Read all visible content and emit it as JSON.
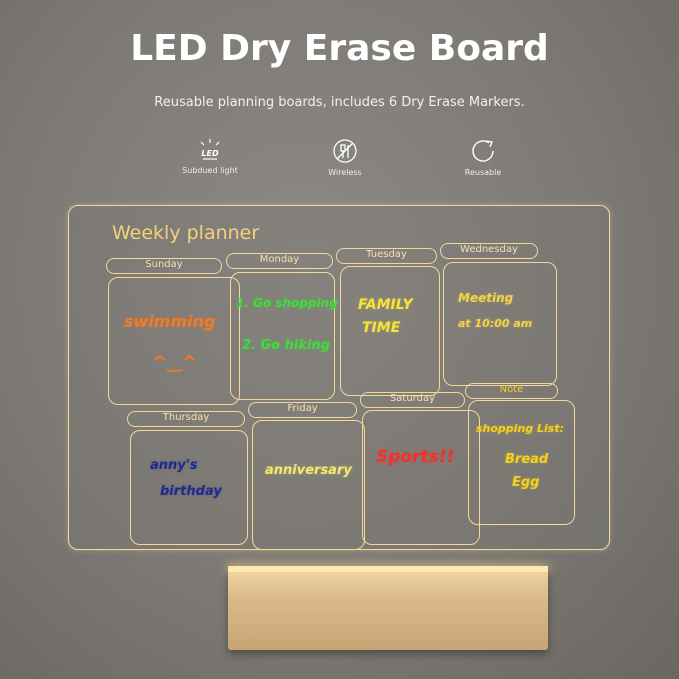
{
  "title": "LED Dry Erase Board",
  "subtitle": "Reusable planning boards, includes 6 Dry Erase Markers.",
  "features": [
    {
      "icon": "led-light-icon",
      "label": "Subdued light",
      "icon_text": "LED"
    },
    {
      "icon": "wireless-icon",
      "label": "Wireless"
    },
    {
      "icon": "reusable-icon",
      "label": "Reusable"
    }
  ],
  "board": {
    "heading": "Weekly planner",
    "days": [
      {
        "label": "Sunday",
        "notes": [
          "swimming",
          "^‿^"
        ],
        "color": "#f07a2a"
      },
      {
        "label": "Monday",
        "notes": [
          "1. Go shopping",
          "2. Go hiking"
        ],
        "color": "#3fdc3a"
      },
      {
        "label": "Tuesday",
        "notes": [
          "FAMILY",
          "TIME"
        ],
        "color": "#f5e23a"
      },
      {
        "label": "Wednesday",
        "notes": [
          "Meeting",
          "at 10:00 am"
        ],
        "color": "#f5d24a"
      },
      {
        "label": "Thursday",
        "notes": [
          "anny's",
          "birthday"
        ],
        "color": "#1d2c8a"
      },
      {
        "label": "Friday",
        "notes": [
          "anniversary"
        ],
        "color": "#f5e870"
      },
      {
        "label": "Saturday",
        "notes": [
          "Sports!!"
        ],
        "color": "#f0322a"
      },
      {
        "label": "Note",
        "notes": [
          "shopping List:",
          "Bread",
          "Egg"
        ],
        "color": "#f5d21a"
      }
    ]
  }
}
